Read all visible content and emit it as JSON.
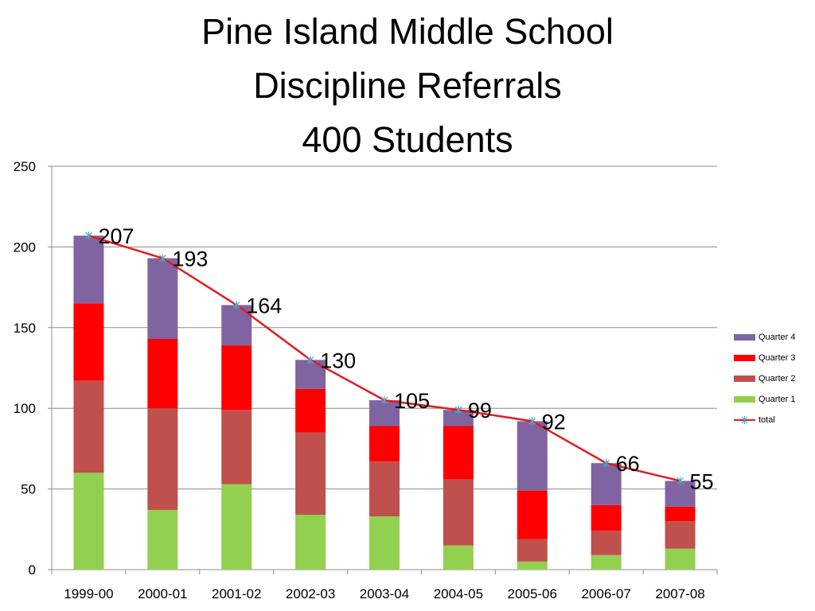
{
  "chart_data": {
    "type": "bar",
    "stacked": true,
    "title": [
      "Pine Island Middle School",
      "Discipline Referrals",
      "400 Students"
    ],
    "categories": [
      "1999-00",
      "2000-01",
      "2001-02",
      "2002-03",
      "2003-04",
      "2004-05",
      "2005-06",
      "2006-07",
      "2007-08"
    ],
    "ylim": [
      0,
      250
    ],
    "yticks": [
      0,
      50,
      100,
      150,
      200,
      250
    ],
    "grid": true,
    "legend_position": "right",
    "series": [
      {
        "name": "Quarter 1",
        "color": "#92D050",
        "values": [
          60,
          37,
          53,
          34,
          33,
          15,
          5,
          9,
          13
        ]
      },
      {
        "name": "Quarter 2",
        "color": "#C0504D",
        "values": [
          57,
          63,
          46,
          51,
          34,
          41,
          14,
          15,
          17
        ]
      },
      {
        "name": "Quarter 3",
        "color": "#FF0000",
        "values": [
          48,
          43,
          40,
          27,
          22,
          33,
          30,
          16,
          9
        ]
      },
      {
        "name": "Quarter 4",
        "color": "#8064A2",
        "values": [
          42,
          50,
          25,
          18,
          16,
          10,
          43,
          26,
          16
        ]
      }
    ],
    "line_series": {
      "name": "total",
      "color": "#E31A1C",
      "marker_color": "#4BACC6",
      "values": [
        207,
        193,
        164,
        130,
        105,
        99,
        92,
        66,
        55
      ]
    }
  }
}
